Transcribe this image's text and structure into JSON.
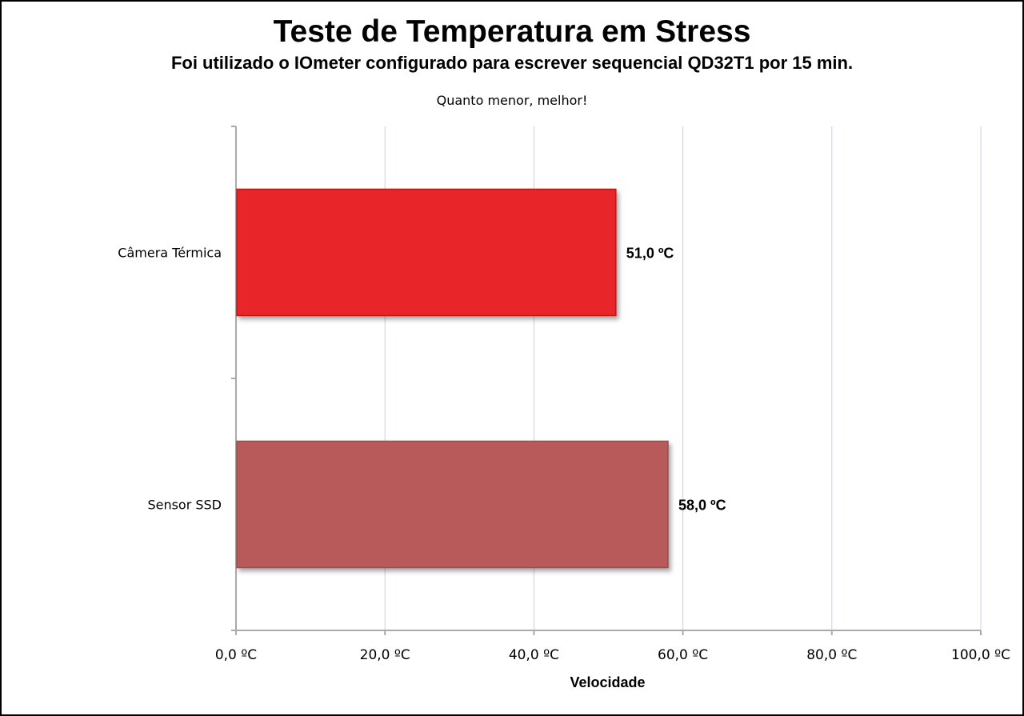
{
  "chart_data": {
    "type": "bar",
    "orientation": "horizontal",
    "title": "Teste de Temperatura em Stress",
    "subtitle": "Foi utilizado o IOmeter  configurado para escrever sequencial QD32T1 por 15 min.",
    "note": "Quanto menor, melhor!",
    "xlabel": "Velocidade",
    "xlim": [
      0,
      100
    ],
    "ticks": [
      0,
      20,
      40,
      60,
      80,
      100
    ],
    "tick_labels": [
      "0,0 ºC",
      "20,0 ºC",
      "40,0 ºC",
      "60,0 ºC",
      "80,0 ºC",
      "100,0 ºC"
    ],
    "categories": [
      "Câmera Térmica",
      "Sensor SSD"
    ],
    "values": [
      51.0,
      58.0
    ],
    "value_labels": [
      "51,0 ºC",
      "58,0 ºC"
    ],
    "colors": [
      "#e8262a",
      "#b95a5a"
    ],
    "gridlines": true,
    "legend": false
  }
}
